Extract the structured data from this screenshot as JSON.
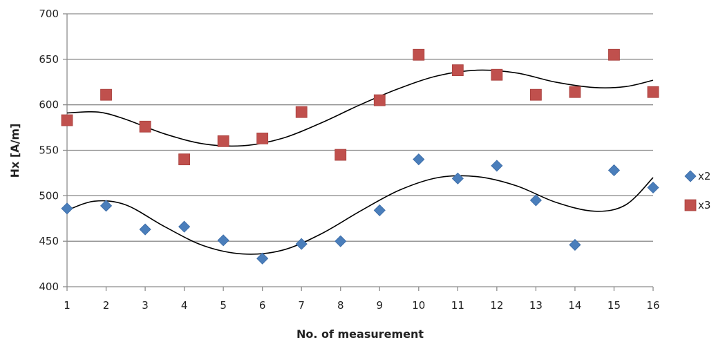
{
  "chart_data": {
    "type": "scatter",
    "title": "",
    "xlabel": "No. of measurement",
    "ylabel": "Hx [A/m]",
    "xlim": [
      1,
      16
    ],
    "ylim": [
      400,
      700
    ],
    "x_ticks": [
      "1",
      "2",
      "3",
      "4",
      "5",
      "6",
      "7",
      "8",
      "9",
      "10",
      "11",
      "12",
      "13",
      "14",
      "15",
      "16"
    ],
    "y_ticks": [
      "400",
      "450",
      "500",
      "550",
      "600",
      "650",
      "700"
    ],
    "grid": true,
    "legend": "right",
    "series": [
      {
        "name": "x2",
        "marker": "diamond",
        "color": "#4a7ebb",
        "x": [
          1,
          2,
          3,
          4,
          5,
          6,
          7,
          8,
          9,
          10,
          11,
          12,
          13,
          14,
          15,
          16
        ],
        "y": [
          486,
          489,
          463,
          466,
          451,
          431,
          447,
          450,
          484,
          540,
          519,
          533,
          495,
          446,
          528,
          509
        ],
        "trend": {
          "color": "#000000",
          "points": [
            [
              1,
              484
            ],
            [
              1.7,
              494
            ],
            [
              2.5,
              490
            ],
            [
              3.5,
              466
            ],
            [
              4.5,
              445
            ],
            [
              5.5,
              436
            ],
            [
              6.5,
              440
            ],
            [
              7.5,
              458
            ],
            [
              8.5,
              483
            ],
            [
              9.5,
              506
            ],
            [
              10.5,
              520
            ],
            [
              11.5,
              521
            ],
            [
              12.5,
              511
            ],
            [
              13.5,
              493
            ],
            [
              14.5,
              483
            ],
            [
              15.3,
              490
            ],
            [
              16,
              520
            ]
          ]
        }
      },
      {
        "name": "x3",
        "marker": "square",
        "color": "#c0504d",
        "x": [
          1,
          2,
          3,
          4,
          5,
          6,
          7,
          8,
          9,
          10,
          11,
          12,
          13,
          14,
          15,
          16
        ],
        "y": [
          583,
          611,
          576,
          540,
          560,
          563,
          592,
          545,
          605,
          655,
          638,
          633,
          611,
          614,
          655,
          614
        ],
        "trend": {
          "color": "#000000",
          "points": [
            [
              1,
              591
            ],
            [
              1.8,
              592
            ],
            [
              2.5,
              584
            ],
            [
              3.5,
              568
            ],
            [
              4.5,
              557
            ],
            [
              5.5,
              555
            ],
            [
              6.5,
              563
            ],
            [
              7.5,
              580
            ],
            [
              8.5,
              600
            ],
            [
              9.5,
              618
            ],
            [
              10.5,
              632
            ],
            [
              11.5,
              638
            ],
            [
              12.5,
              635
            ],
            [
              13.5,
              625
            ],
            [
              14.5,
              619
            ],
            [
              15.3,
              620
            ],
            [
              16,
              627
            ]
          ]
        }
      }
    ]
  }
}
